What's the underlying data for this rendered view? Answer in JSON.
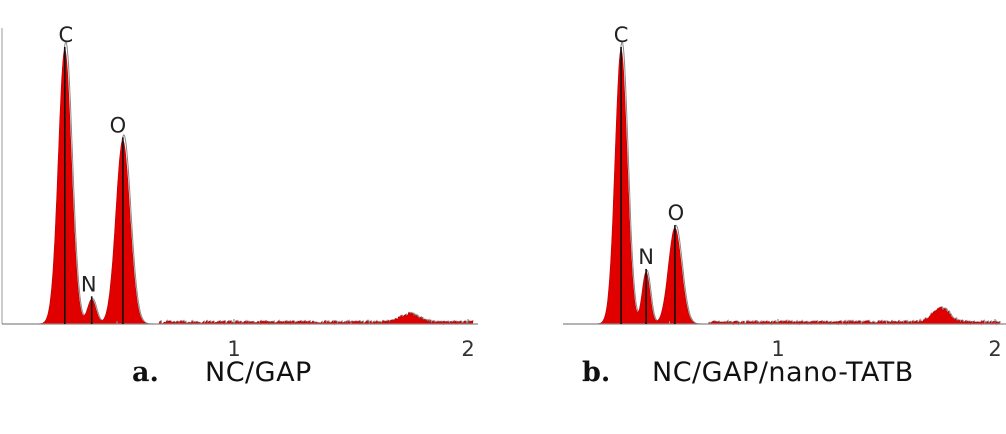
{
  "chart_data": [
    {
      "type": "area",
      "panel": "a",
      "caption_letter": "a.",
      "caption_text": "NC/GAP",
      "x_ticks": [
        1,
        2
      ],
      "xlim": [
        0.0,
        2.02
      ],
      "ylim": [
        0,
        100
      ],
      "peaks": [
        {
          "label": "C",
          "x": 0.277,
          "y": 100
        },
        {
          "label": "N",
          "x": 0.392,
          "y": 9
        },
        {
          "label": "O",
          "x": 0.525,
          "y": 67
        }
      ],
      "minor_features": [
        {
          "x": 1.75,
          "y": 3
        }
      ],
      "color": "#e00000"
    },
    {
      "type": "area",
      "panel": "b",
      "caption_letter": "b.",
      "caption_text": "NC/GAP/nano-TATB",
      "x_ticks": [
        1,
        2
      ],
      "xlim": [
        0.0,
        2.02
      ],
      "ylim": [
        0,
        100
      ],
      "peaks": [
        {
          "label": "C",
          "x": 0.277,
          "y": 100
        },
        {
          "label": "N",
          "x": 0.392,
          "y": 19
        },
        {
          "label": "O",
          "x": 0.525,
          "y": 35
        }
      ],
      "minor_features": [
        {
          "x": 1.75,
          "y": 5
        }
      ],
      "color": "#e00000"
    }
  ]
}
